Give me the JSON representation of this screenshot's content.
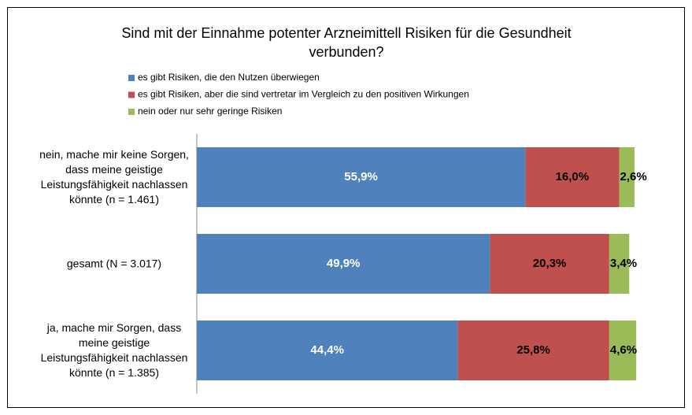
{
  "chart_data": {
    "type": "stacked-barh",
    "title": "Sind mit der Einnahme potenter Arzneimittell Risiken für die Gesundheit verbunden?",
    "categories": [
      "nein, mache mir keine Sorgen, dass meine geistige Leistungsfähigkeit nachlassen könnte  (n = 1.461)",
      "gesamt (N = 3.017)",
      "ja, mache mir Sorgen, dass meine geistige Leistungsfähigkeit nachlassen könnte  (n = 1.385)"
    ],
    "series": [
      {
        "name": "es gibt Risiken, die den Nutzen überwiegen",
        "color": "#4f81bd",
        "label_color": "#ffffff",
        "values": [
          55.9,
          49.9,
          44.4
        ],
        "value_labels": [
          "55,9%",
          "49,9%",
          "44,4%"
        ]
      },
      {
        "name": "es gibt Risiken, aber die sind vertretar im Vergleich zu den positiven Wirkungen",
        "color": "#c0504d",
        "label_color": "#000000",
        "values": [
          16.0,
          20.3,
          25.8
        ],
        "value_labels": [
          "16,0%",
          "20,3%",
          "25,8%"
        ]
      },
      {
        "name": "nein oder nur sehr geringe Risiken",
        "color": "#9bbb59",
        "label_color": "#000000",
        "values": [
          2.6,
          3.4,
          4.6
        ],
        "value_labels": [
          "2,6%",
          "3,4%",
          "4,6%"
        ]
      }
    ],
    "xlim": [
      0,
      80
    ],
    "legend": "top"
  }
}
